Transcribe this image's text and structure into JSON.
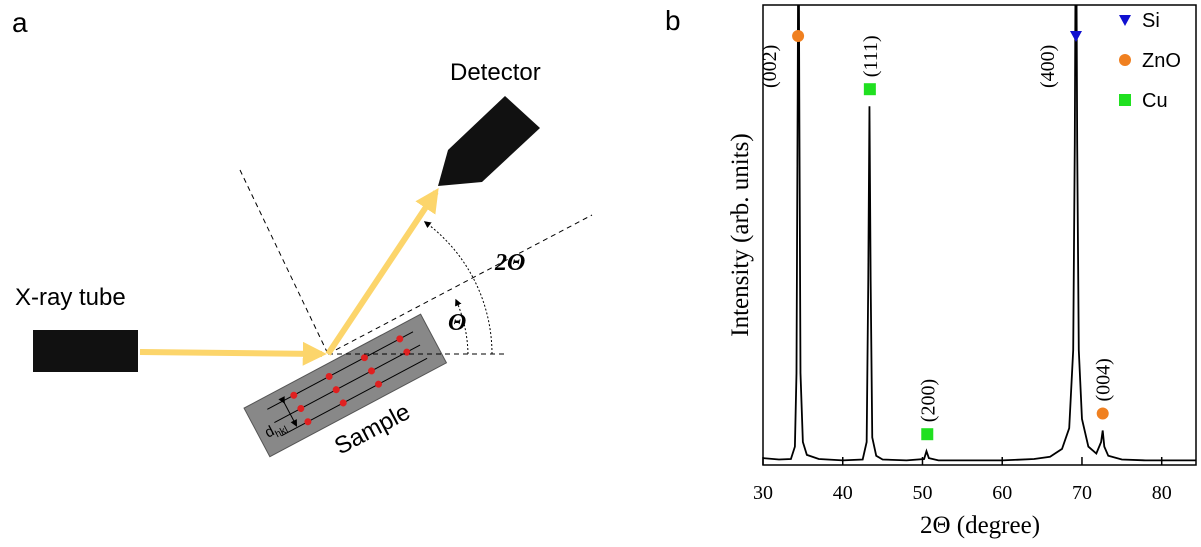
{
  "panel_a": {
    "label": "a",
    "detector": "Detector",
    "source": "X-ray tube",
    "angle_2theta": "2Θ",
    "angle_theta": "Θ",
    "sample": "Sample",
    "spacing": "d",
    "spacing_sub": "hkl"
  },
  "chart_data": {
    "type": "line",
    "panel_label": "b",
    "x_label": "2Θ (degree)",
    "y_label": "Intensity (arb. units)",
    "x": [
      30,
      32,
      33.5,
      34.0,
      34.2,
      34.35,
      34.45,
      34.55,
      34.7,
      35.0,
      35.5,
      37,
      40,
      42.5,
      43.0,
      43.2,
      43.35,
      43.5,
      43.7,
      44.2,
      45,
      48,
      50.2,
      50.5,
      50.8,
      52,
      55,
      60,
      64,
      66,
      67.5,
      68.4,
      68.9,
      69.1,
      69.25,
      69.4,
      69.6,
      70,
      70.8,
      71.8,
      72.4,
      72.6,
      72.8,
      73.3,
      75,
      78,
      81,
      84.3
    ],
    "values": [
      1.5,
      1.2,
      1.3,
      4,
      20,
      80,
      130,
      80,
      20,
      5,
      2.2,
      1.3,
      1,
      1.2,
      5,
      40,
      78,
      40,
      6,
      2,
      1.2,
      1,
      1.3,
      3,
      1.5,
      1,
      1,
      1,
      1.3,
      1.8,
      3.5,
      8,
      25,
      70,
      130,
      70,
      25,
      10,
      4,
      2.5,
      5,
      7.5,
      4,
      2,
      1.2,
      1,
      1,
      1
    ],
    "color": "#000000",
    "xlim": [
      30,
      84.3
    ],
    "xticks": [
      30,
      40,
      50,
      60,
      70,
      80
    ],
    "ylim": [
      0,
      100
    ],
    "phases": [
      {
        "name": "Si",
        "color": "#1010d0",
        "marker": "triangle"
      },
      {
        "name": "ZnO",
        "color": "#f08020",
        "marker": "circle"
      },
      {
        "name": "Cu",
        "color": "#20e020",
        "marker": "square"
      }
    ],
    "annotations": [
      {
        "label": "(002)",
        "x": 34.4,
        "phase": 1
      },
      {
        "label": "(111)",
        "x": 43.4,
        "phase": 2
      },
      {
        "label": "(200)",
        "x": 50.6,
        "phase": 2
      },
      {
        "label": "(400)",
        "x": 69.25,
        "phase": 0
      },
      {
        "label": "(004)",
        "x": 72.6,
        "phase": 1
      }
    ]
  }
}
